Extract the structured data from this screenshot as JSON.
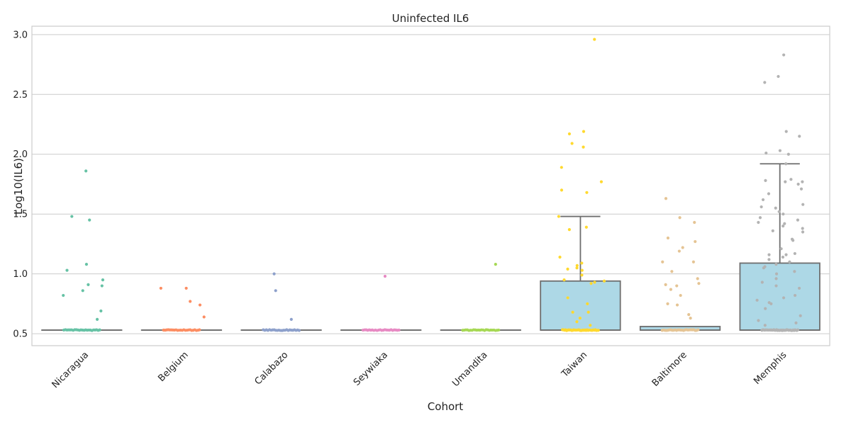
{
  "chart_data": {
    "type": "box",
    "title": "Uninfected IL6",
    "xlabel": "Cohort",
    "ylabel": "Log10(IL6)",
    "ylim": [
      0.4,
      3.07
    ],
    "yticks": [
      "0.5",
      "1.0",
      "1.5",
      "2.0",
      "2.5",
      "3.0"
    ],
    "grid": "horizontal",
    "categories": [
      "Nicaragua",
      "Belgium",
      "Calabazo",
      "Seywiaka",
      "Umandita",
      "Taiwan",
      "Baltimore",
      "Memphis"
    ],
    "colors": [
      "#66c2a5",
      "#fc8d62",
      "#8da0cb",
      "#e78ac3",
      "#a6d854",
      "#ffd92f",
      "#e5c494",
      "#b3b3b3"
    ],
    "box_color": "#add8e6",
    "box_edge_color": "#6e6e6e",
    "boxes": [
      {
        "q1": 0.53,
        "median": 0.53,
        "q3": 0.53,
        "whisker_low": 0.53,
        "whisker_high": 0.53
      },
      {
        "q1": 0.53,
        "median": 0.53,
        "q3": 0.53,
        "whisker_low": 0.53,
        "whisker_high": 0.53
      },
      {
        "q1": 0.53,
        "median": 0.53,
        "q3": 0.53,
        "whisker_low": 0.53,
        "whisker_high": 0.53
      },
      {
        "q1": 0.53,
        "median": 0.53,
        "q3": 0.53,
        "whisker_low": 0.53,
        "whisker_high": 0.53
      },
      {
        "q1": 0.53,
        "median": 0.53,
        "q3": 0.53,
        "whisker_low": 0.53,
        "whisker_high": 0.53
      },
      {
        "q1": 0.53,
        "median": 0.53,
        "q3": 0.94,
        "whisker_low": 0.53,
        "whisker_high": 1.48
      },
      {
        "q1": 0.53,
        "median": 0.53,
        "q3": 0.56,
        "whisker_low": 0.53,
        "whisker_high": 0.56
      },
      {
        "q1": 0.53,
        "median": 0.53,
        "q3": 1.09,
        "whisker_low": 0.53,
        "whisker_high": 1.92
      }
    ],
    "points": [
      {
        "category": "Nicaragua",
        "baseline_count": 24,
        "values": [
          1.86,
          1.48,
          1.45,
          1.08,
          1.03,
          0.95,
          0.91,
          0.9,
          0.86,
          0.82,
          0.69,
          0.62
        ]
      },
      {
        "category": "Belgium",
        "baseline_count": 24,
        "values": [
          0.88,
          0.88,
          0.77,
          0.74,
          0.64
        ]
      },
      {
        "category": "Calabazo",
        "baseline_count": 24,
        "values": [
          1.0,
          0.86,
          0.62
        ]
      },
      {
        "category": "Seywiaka",
        "baseline_count": 24,
        "values": [
          0.98
        ]
      },
      {
        "category": "Umandita",
        "baseline_count": 24,
        "values": [
          1.08
        ]
      },
      {
        "category": "Taiwan",
        "baseline_count": 36,
        "values": [
          2.96,
          2.19,
          2.17,
          2.09,
          2.06,
          1.89,
          1.77,
          1.7,
          1.68,
          1.48,
          1.39,
          1.37,
          1.14,
          1.09,
          1.07,
          1.05,
          1.04,
          1.03,
          0.99,
          0.95,
          0.94,
          0.93,
          0.92,
          0.8,
          0.75,
          0.68,
          0.68,
          0.63,
          0.6,
          0.57
        ]
      },
      {
        "category": "Baltimore",
        "baseline_count": 26,
        "values": [
          1.63,
          1.47,
          1.43,
          1.3,
          1.27,
          1.22,
          1.19,
          1.1,
          1.1,
          1.02,
          0.96,
          0.92,
          0.91,
          0.9,
          0.87,
          0.82,
          0.75,
          0.74,
          0.66,
          0.63
        ]
      },
      {
        "category": "Memphis",
        "baseline_count": 40,
        "values": [
          2.83,
          2.65,
          2.6,
          2.19,
          2.15,
          2.03,
          2.01,
          2.0,
          1.92,
          1.79,
          1.78,
          1.77,
          1.77,
          1.75,
          1.71,
          1.67,
          1.62,
          1.58,
          1.56,
          1.55,
          1.52,
          1.5,
          1.47,
          1.45,
          1.43,
          1.42,
          1.4,
          1.38,
          1.36,
          1.35,
          1.29,
          1.28,
          1.21,
          1.17,
          1.16,
          1.16,
          1.14,
          1.12,
          1.1,
          1.08,
          1.06,
          1.05,
          1.02,
          1.0,
          0.96,
          0.93,
          0.9,
          0.88,
          0.82,
          0.8,
          0.78,
          0.76,
          0.75,
          0.71,
          0.65,
          0.61,
          0.59,
          0.57
        ]
      }
    ]
  }
}
